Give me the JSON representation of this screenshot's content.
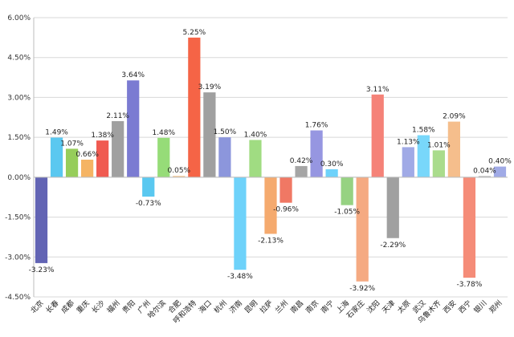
{
  "chart_data": {
    "type": "bar",
    "title": "",
    "xlabel": "",
    "ylabel": "",
    "ylim": [
      -4.5,
      6.0
    ],
    "yticks": [
      6.0,
      4.5,
      3.0,
      1.5,
      0.0,
      -1.5,
      -3.0,
      -4.5
    ],
    "ytick_labels": [
      "6.00%",
      "4.50%",
      "3.00%",
      "1.50%",
      "0.00%",
      "-1.50%",
      "-3.00%",
      "-4.50%"
    ],
    "grid": true,
    "legend": "none",
    "categories": [
      "北京",
      "长春",
      "成都",
      "重庆",
      "长沙",
      "福州",
      "贵阳",
      "广州",
      "哈尔滨",
      "合肥",
      "呼和浩特",
      "海口",
      "杭州",
      "济南",
      "昆明",
      "拉萨",
      "兰州",
      "南昌",
      "南京",
      "南宁",
      "上海",
      "石家庄",
      "沈阳",
      "天津",
      "太原",
      "武汉",
      "乌鲁木齐",
      "西安",
      "西宁",
      "银川",
      "郑州"
    ],
    "values": [
      -3.23,
      1.49,
      1.07,
      0.66,
      1.38,
      2.11,
      3.64,
      -0.73,
      1.48,
      0.05,
      5.25,
      3.19,
      1.5,
      -3.48,
      1.4,
      -2.13,
      -0.96,
      0.42,
      1.76,
      0.3,
      -1.05,
      -3.92,
      3.11,
      -2.29,
      1.13,
      1.58,
      1.01,
      2.09,
      -3.78,
      0.04,
      0.4
    ],
    "value_labels": [
      "-3.23%",
      "1.49%",
      "1.07%",
      "0.66%",
      "1.38%",
      "2.11%",
      "3.64%",
      "-0.73%",
      "1.48%",
      "0.05%",
      "5.25%",
      "3.19%",
      "1.50%",
      "-3.48%",
      "1.40%",
      "-2.13%",
      "-0.96%",
      "0.42%",
      "1.76%",
      "0.30%",
      "-1.05%",
      "-3.92%",
      "3.11%",
      "-2.29%",
      "1.13%",
      "1.58%",
      "1.01%",
      "2.09%",
      "-3.78%",
      "0.04%",
      "0.40%"
    ],
    "colors": [
      "#6264b4",
      "#5ac8f0",
      "#96cd5a",
      "#f5b464",
      "#f05a50",
      "#a0a0a0",
      "#7b7bd2",
      "#5ac8f0",
      "#96dc78",
      "#f5c896",
      "#f56446",
      "#a0a0a0",
      "#8c96dc",
      "#6ed2fa",
      "#a0dc82",
      "#f5aa6e",
      "#f07864",
      "#a5a5a5",
      "#9696e1",
      "#6ed2fa",
      "#96d282",
      "#f5aa82",
      "#f58278",
      "#a0a0a0",
      "#a0aae6",
      "#78d7fa",
      "#aadc8c",
      "#f5be8c",
      "#f58c78",
      "#aaaaaa",
      "#a0aae6"
    ]
  }
}
